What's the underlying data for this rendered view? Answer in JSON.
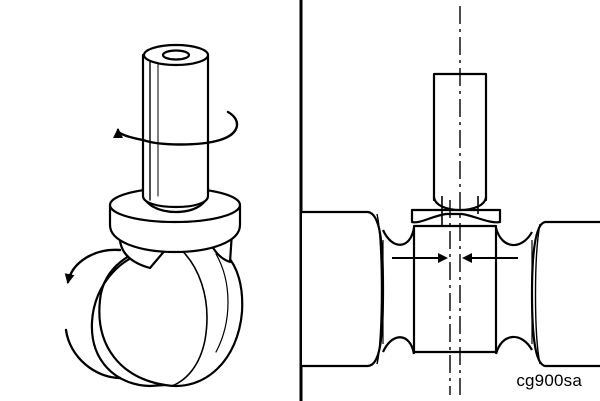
{
  "figure": {
    "code": "cg900sa",
    "left_panel": "caster-with-rotation-arrows",
    "right_panel": "shaft-centerline-offset-cross-section",
    "line_color": "#000000",
    "background": "#ffffff"
  }
}
